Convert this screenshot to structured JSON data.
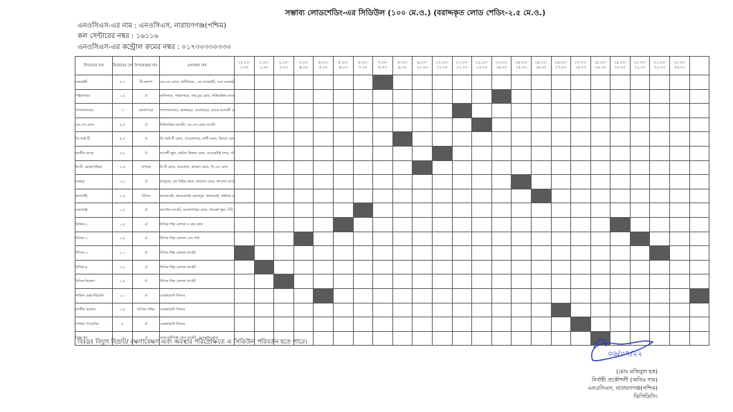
{
  "header": {
    "title": "সম্ভাব্য লোডশেডিং-এর সিডিউল (১০০ মে.ও.) (বরাদ্দকৃত লোড শেডিং-২.৫ মে.ও.)",
    "nocs_name": "এনওসিএস-এর নাম : এনওসিএস, নারায়ণগঞ্জ(পশ্চিম)",
    "call_center": "কল সেন্টারের নম্বর : ১৬১১৬",
    "control_room": "এনওসিএস-এর কন্ট্রোল রুমের নম্বর : ০১৭৩০৩৩০৩৩০"
  },
  "table": {
    "headers": {
      "feeder": "ফিডারের নাম",
      "load": "ফিডারের লোড",
      "substation": "উপকেন্দ্রের নাম",
      "area": "এলাকার নাম"
    },
    "time_slots": [
      [
        "১২.০০-",
        "১.০০"
      ],
      [
        "১.০০-",
        "২.০০"
      ],
      [
        "২.০০-",
        "৩.০০"
      ],
      [
        "৩.০০-",
        "৪.০০"
      ],
      [
        "৪.০০-",
        "৫.০০"
      ],
      [
        "৫.০০-",
        "৬.০০"
      ],
      [
        "৬.০০-",
        "৭.০০"
      ],
      [
        "৭.০০-",
        "৮.০০"
      ],
      [
        "৮.০০-",
        "৯.০০"
      ],
      [
        "৯.০০-",
        "১০.০০"
      ],
      [
        "১০.০০-",
        "১১.০০"
      ],
      [
        "১১.০০-",
        "১২.০০"
      ],
      [
        "১২.০০-",
        "১৩.০০"
      ],
      [
        "১৩.০০-",
        "১৪.০০"
      ],
      [
        "১৪.০০-",
        "১৫.০০"
      ],
      [
        "১৫.০০-",
        "১৬.০০"
      ],
      [
        "১৬.০০-",
        "১৭.০০"
      ],
      [
        "১৭.০০-",
        "১৮.০০"
      ],
      [
        "১৮.০০-",
        "১৯.০০"
      ],
      [
        "১৯.০০-",
        "২০.০০"
      ],
      [
        "২০.০০-",
        "২১.০০"
      ],
      [
        "২১.০০-",
        "২২.০০"
      ],
      [
        "২২.০০-",
        "২৩.০০"
      ]
    ],
    "rows": [
      {
        "feeder": "নগুরহাঁট",
        "load": "৫.৭",
        "substation": "নী.ডনাগা",
        "area": "এম.এস রোড, ঢালীকাড়া, ১নং নগুরহাঁট, এবং নগুরহাঁট",
        "shed": [
          7
        ]
      },
      {
        "feeder": "পাইকপাড়া",
        "load": "২.৮",
        "substation": "ঐ",
        "area": "মাসিনাড়া, পাইকপাড়া, শাহ চুক রোড, নিউজকিন্ড মার্কেট",
        "shed": [
          13
        ]
      },
      {
        "feeder": "পাগলাবাজার",
        "load": "৩",
        "substation": "মন্ডলপাড়া",
        "area": "পাগলাবাজার, ভাঙ্গনাড়া, দেলোয়ারা, ব্যাংক কলোনী ও মেঘনারা মার্কেট",
        "shed": [
          11
        ]
      },
      {
        "feeder": "এম.এস রোড",
        "load": "৫.৫",
        "substation": "ঐ",
        "area": "নিউজকিন্ড মার্কেট, এম.এস রোড মার্কেট",
        "shed": [
          12
        ]
      },
      {
        "feeder": "ডি.আই.টি",
        "load": "৫.৫",
        "substation": "ঐ",
        "area": "ডি আই টি রোড, দেওয়ানগড়, কাশী ভবন, উলকা রোড",
        "shed": [
          8
        ]
      },
      {
        "feeder": "কাজীর চাংড়া",
        "load": "৫.৮",
        "substation": "ঐ",
        "area": "আতর্শী স্কুল, মাস্টার উজ্জল রোড, আবেরটাই নগর, পশ্চিম ঘাট",
        "shed": [
          10
        ]
      },
      {
        "feeder": "নি.টি. রোড(পশ্চিম)",
        "load": "২.৪",
        "substation": "ঐপাড়া",
        "area": "নি.টি রোড, আমতলা, কামেল রোড, সি.এস রোড",
        "shed": [
          9
        ]
      },
      {
        "feeder": "চাষাড়া",
        "load": "৩.২",
        "substation": "ঐ",
        "area": "কালুরাম, বঙ্গ বিহির মহুক, কালেজ রোড, কালেজ মার্কেট, চাষাঁর লাইন",
        "shed": [
          14
        ]
      },
      {
        "feeder": "হাজাবাঁই",
        "load": "২.৪",
        "substation": "বিসিক",
        "area": "কাশেমবাই, জায়েরাবাই রোডলুক, কলায়বাই, ফাইবার নগর, ফুকুডাই রোড, খানা",
        "shed": [
          15
        ]
      },
      {
        "feeder": "নবাবগঞ্জ",
        "load": "১.৫",
        "substation": "ঐ",
        "area": "ক্যাপ্টেন মার্কেট, আমলাপাড়া রোড, শায়েস্তা স্কুল, সিঁধ পাড়া, আলম মহাবাই",
        "shed": [
          6
        ]
      },
      {
        "feeder": "বিসিক-১",
        "load": "১.৫",
        "substation": "ঐ",
        "area": "বিসিক শিল্প এলাকা ও মন্ত্র রোড",
        "shed": [
          5,
          19
        ]
      },
      {
        "feeder": "বিসিক-২",
        "load": "১.৫",
        "substation": "ঐ",
        "area": "বিসিক শিল্প এলাকা ১নং গলি",
        "shed": [
          3,
          20
        ]
      },
      {
        "feeder": "বিসিক-৩",
        "load": "২.০",
        "substation": "ঐ",
        "area": "বিসিক শিল্প এলাকা মার্কেট",
        "shed": [
          0,
          21
        ]
      },
      {
        "feeder": "বিসিক-৪",
        "load": "২.০",
        "substation": "ঐ",
        "area": "বিসিক শিল্প এলাকা মার্কেট",
        "shed": [
          1
        ]
      },
      {
        "feeder": "বিসিক নিয়ন্ত্রণ",
        "load": "২.৫",
        "substation": "ঐ",
        "area": "বিসিক শিল্প এলাকা মার্কেট",
        "shed": [
          2
        ]
      },
      {
        "feeder": "নাভিল এক্সপেরিমেন্ট",
        "load": "২.১",
        "substation": "ঐ",
        "area": "একক্লায়েন্ট ফিডার",
        "shed": [
          4,
          23
        ]
      },
      {
        "feeder": "কাজীর কলেজ",
        "load": "৩.৫",
        "substation": "বিসিক-পশ্চিম",
        "area": "একক্লায়েন্ট ফিডার",
        "shed": [
          16
        ]
      },
      {
        "feeder": "শেখভা প্যারেসিম",
        "load": "৪",
        "substation": "ঐ",
        "area": "একক্লায়েন্ট ফিডার",
        "shed": [
          17
        ]
      },
      {
        "feeder": "মিশন ইন",
        "load": "৩",
        "substation": "ঐ",
        "area": "ঢাকা-মুন্সীগঞ্জ রোড মার্কেট, এসেক্সুইন পার্ক",
        "shed": [
          18
        ]
      }
    ]
  },
  "footer_note": "বিঃদ্রঃ বিদ্যুৎ বিভ্রাট/ রক্ষণাবেক্ষণ এবং অবস্থার পরিপ্রেক্ষিতে এ সিডিউল পরিবর্তন হতে পারে।",
  "signature": {
    "date": "০৬/০৭/২২",
    "name": "(মোঃ মজিবুল হক)",
    "designation": "নির্বাহী প্রকৌশলী (অতিঃ দায়)",
    "office": "এনওসিএস, নারায়ণগঞ্জ(পশ্চিম)",
    "org": "ডিপিডিসি।"
  }
}
